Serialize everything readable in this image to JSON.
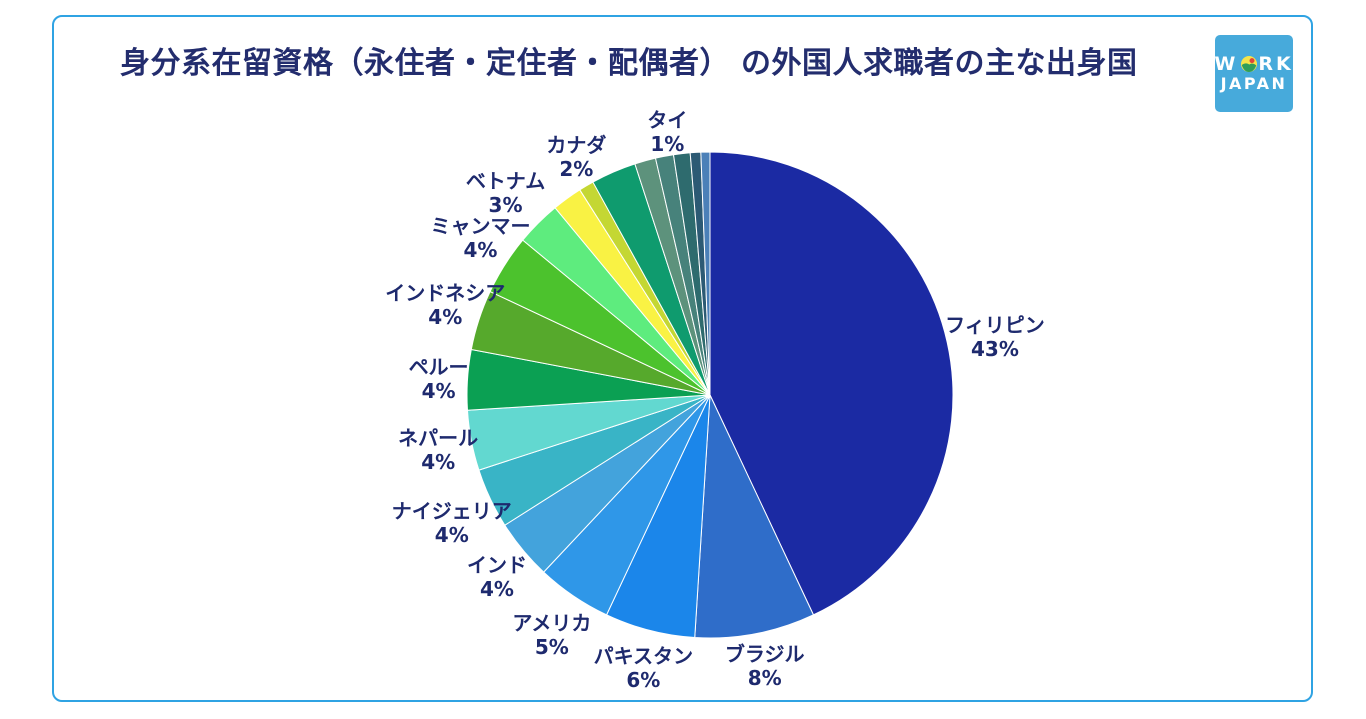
{
  "card": {
    "border_color": "#2fa3e3",
    "background": "#ffffff"
  },
  "title": {
    "text": "身分系在留資格（永住者・定住者・配偶者） の外国人求職者の主な出身国",
    "color": "#232d6e"
  },
  "logo": {
    "word1_prefix": "W",
    "word1_suffix": "RK",
    "word2": "JAPAN",
    "bg_color": "#47aadb",
    "text_color": "#ffffff",
    "globe_colors": {
      "body": "#f5e44a",
      "sun": "#e0453c",
      "land": "#2f9e5a"
    }
  },
  "chart_data": {
    "type": "pie",
    "title": "身分系在留資格（永住者・定住者・配偶者） の外国人求職者の主な出身国",
    "unit": "%",
    "direction": "clockwise",
    "start_angle_deg": 0,
    "legend_position": "outside-radial-labels",
    "slices": [
      {
        "label": "フィリピン",
        "value": 43,
        "display_pct": "43%",
        "color": "#1b2aa3",
        "labeled": true
      },
      {
        "label": "ブラジル",
        "value": 8,
        "display_pct": "8%",
        "color": "#2f6dc9",
        "labeled": true
      },
      {
        "label": "パキスタン",
        "value": 6,
        "display_pct": "6%",
        "color": "#1b86ea",
        "labeled": true
      },
      {
        "label": "アメリカ",
        "value": 5,
        "display_pct": "5%",
        "color": "#2f97e8",
        "labeled": true
      },
      {
        "label": "インド",
        "value": 4,
        "display_pct": "4%",
        "color": "#43a3dc",
        "labeled": true
      },
      {
        "label": "ナイジェリア",
        "value": 4,
        "display_pct": "4%",
        "color": "#39b4c6",
        "labeled": true
      },
      {
        "label": "ネパール",
        "value": 4,
        "display_pct": "4%",
        "color": "#62d8d0",
        "labeled": true
      },
      {
        "label": "ペルー",
        "value": 4,
        "display_pct": "4%",
        "color": "#0ba053",
        "labeled": true
      },
      {
        "label": "インドネシア",
        "value": 4,
        "display_pct": "4%",
        "color": "#56a92c",
        "labeled": true
      },
      {
        "label": "ミャンマー",
        "value": 4,
        "display_pct": "4%",
        "color": "#4cc22d",
        "labeled": true
      },
      {
        "label": "ベトナム",
        "value": 3,
        "display_pct": "3%",
        "color": "#5eec7e",
        "labeled": true
      },
      {
        "label": "カナダ",
        "value": 2,
        "display_pct": "2%",
        "color": "#f9f244",
        "labeled": true
      },
      {
        "label": "タイ",
        "value": 1,
        "display_pct": "1%",
        "color": "#c4d733",
        "labeled": true
      },
      {
        "label": "",
        "value": 3.0,
        "color": "#0f9b6e",
        "labeled": false
      },
      {
        "label": "",
        "value": 1.4,
        "color": "#5d927c",
        "labeled": false
      },
      {
        "label": "",
        "value": 1.2,
        "color": "#47827b",
        "labeled": false
      },
      {
        "label": "",
        "value": 1.1,
        "color": "#2e6b6e",
        "labeled": false
      },
      {
        "label": "",
        "value": 0.7,
        "color": "#2c5a74",
        "labeled": false
      },
      {
        "label": "",
        "value": 0.6,
        "color": "#4b80b8",
        "labeled": false
      }
    ]
  }
}
